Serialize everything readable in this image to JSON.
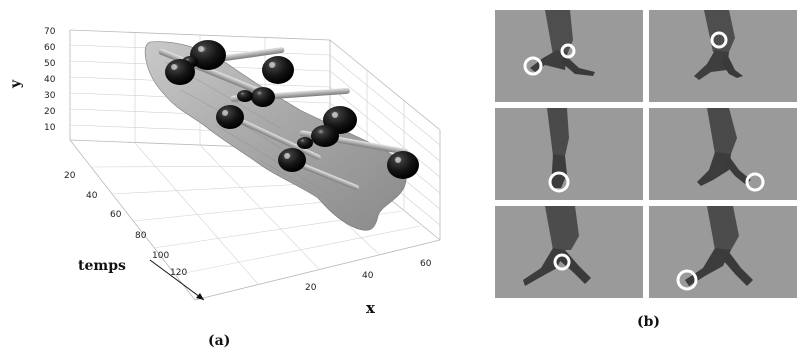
{
  "panel_a": {
    "caption": "(a)",
    "axis_y": {
      "label": "y",
      "ticks": [
        "10",
        "20",
        "30",
        "40",
        "50",
        "60",
        "70"
      ]
    },
    "axis_time": {
      "label": "temps",
      "ticks": [
        "20",
        "40",
        "60",
        "80",
        "100",
        "120"
      ]
    },
    "axis_x": {
      "label": "x",
      "ticks": [
        "20",
        "40",
        "60"
      ]
    }
  },
  "panel_b": {
    "caption": "(b)",
    "frames": [
      {
        "id": "frame-1",
        "circles": 2
      },
      {
        "id": "frame-2",
        "circles": 1
      },
      {
        "id": "frame-3",
        "circles": 1
      },
      {
        "id": "frame-4",
        "circles": 1
      },
      {
        "id": "frame-5",
        "circles": 1
      },
      {
        "id": "frame-6",
        "circles": 1
      }
    ]
  },
  "colors": {
    "frame_background": "#9c9c9c",
    "surface": "#a8a8a8",
    "blob": "#141414",
    "marker_circle": "#ffffff"
  }
}
